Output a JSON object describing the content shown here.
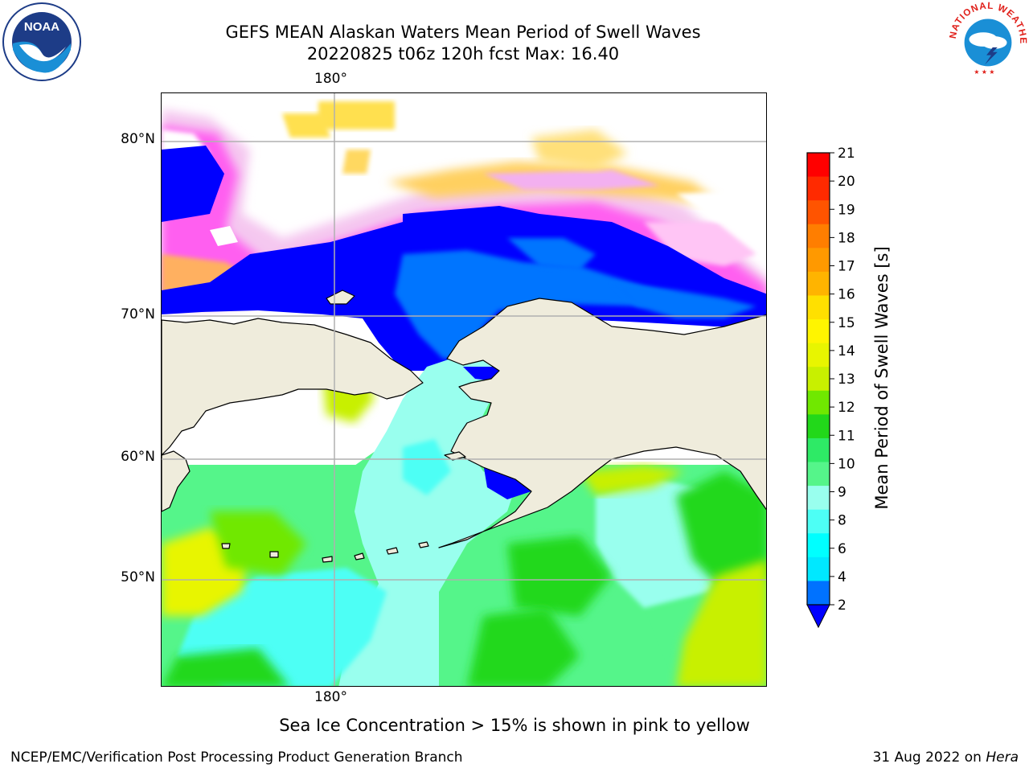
{
  "title": {
    "line1": "GEFS MEAN Alaskan Waters Mean Period of Swell Waves",
    "line2": "20220825 t06z 120h fcst   Max: 16.40"
  },
  "map": {
    "lon_labels": {
      "top": "180°",
      "bottom": "180°"
    },
    "lat_labels": [
      "80°N",
      "70°N",
      "60°N",
      "50°N"
    ],
    "land_color": "#efecdc",
    "gridline_color": "#b0b0b0"
  },
  "colorbar": {
    "label": "Mean Period of Swell Waves [s]",
    "ticks": [
      "21",
      "20",
      "19",
      "18",
      "17",
      "16",
      "15",
      "14",
      "13",
      "12",
      "11",
      "10",
      "9",
      "8",
      "6",
      "4",
      "2"
    ],
    "colors_top_to_bottom": [
      "#ff0000",
      "#ff2a00",
      "#ff5400",
      "#ff7e00",
      "#ff9900",
      "#ffb400",
      "#ffe000",
      "#fff500",
      "#e8f500",
      "#c8f000",
      "#70e800",
      "#22d81a",
      "#2eea66",
      "#55f58a",
      "#99ffee",
      "#4dfff5",
      "#00ffff",
      "#00e8ff",
      "#0072ff"
    ],
    "extend_color": "#0000ff"
  },
  "note": "Sea Ice Concentration > 15% is shown in pink to yellow",
  "footer": {
    "left": "NCEP/EMC/Verification Post Processing Product Generation Branch",
    "right_date": "31 Aug 2022 on",
    "right_host": "Hera"
  },
  "logos": {
    "noaa_text": "NOAA",
    "nws_ring_text": "NATIONAL WEATHER SERVICE"
  }
}
